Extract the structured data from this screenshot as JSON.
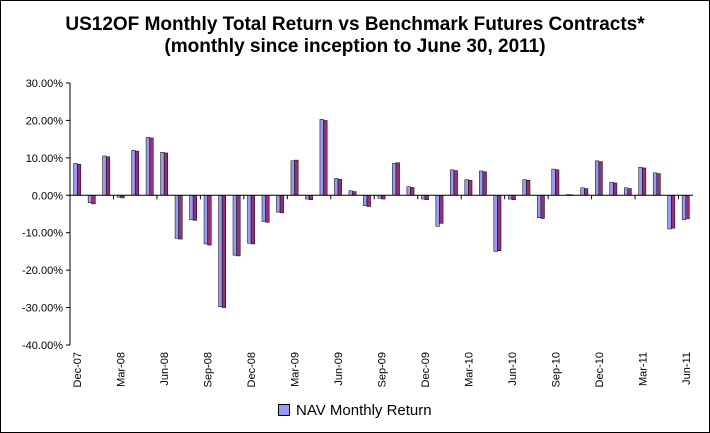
{
  "chart_data": {
    "type": "bar",
    "title": "US12OF Monthly Total Return vs Benchmark Futures Contracts*",
    "subtitle": "(monthly since inception to June 30, 2011)",
    "ylim": [
      -40,
      30
    ],
    "y_ticks": [
      "30.00%",
      "20.00%",
      "10.00%",
      "0.00%",
      "-10.00%",
      "-20.00%",
      "-30.00%",
      "-40.00%"
    ],
    "y_tick_values": [
      30,
      20,
      10,
      0,
      -10,
      -20,
      -30,
      -40
    ],
    "categories": [
      "Dec-07",
      "Jan-08",
      "Feb-08",
      "Mar-08",
      "Apr-08",
      "May-08",
      "Jun-08",
      "Jul-08",
      "Aug-08",
      "Sep-08",
      "Oct-08",
      "Nov-08",
      "Dec-08",
      "Jan-09",
      "Feb-09",
      "Mar-09",
      "Apr-09",
      "May-09",
      "Jun-09",
      "Jul-09",
      "Aug-09",
      "Sep-09",
      "Oct-09",
      "Nov-09",
      "Dec-09",
      "Jan-10",
      "Feb-10",
      "Mar-10",
      "Apr-10",
      "May-10",
      "Jun-10",
      "Jul-10",
      "Aug-10",
      "Sep-10",
      "Oct-10",
      "Nov-10",
      "Dec-10",
      "Jan-11",
      "Feb-11",
      "Mar-11",
      "Apr-11",
      "May-11",
      "Jun-11"
    ],
    "x_tick_labels": [
      "Dec-07",
      "Mar-08",
      "Jun-08",
      "Sep-08",
      "Dec-08",
      "Mar-09",
      "Jun-09",
      "Sep-09",
      "Dec-09",
      "Mar-10",
      "Jun-10",
      "Sep-10",
      "Dec-10",
      "Mar-11",
      "Jun-11"
    ],
    "series": [
      {
        "name": "NAV Monthly Return",
        "color": "#9999ff",
        "values": [
          8.5,
          -2.0,
          10.5,
          -0.5,
          12.0,
          15.5,
          11.5,
          -11.5,
          -6.5,
          -13.0,
          -29.8,
          -16.0,
          -12.8,
          -7.0,
          -4.5,
          9.2,
          -1.0,
          20.3,
          4.5,
          1.2,
          -2.8,
          -0.8,
          8.5,
          2.3,
          -1.0,
          -8.3,
          6.8,
          4.2,
          6.5,
          -15.0,
          -1.0,
          4.2,
          -6.0,
          7.0,
          0.2,
          2.0,
          9.2,
          3.5,
          2.0,
          7.5,
          6.0,
          -9.0,
          -6.5
        ]
      },
      {
        "name": "",
        "color": "#993366",
        "values": [
          8.3,
          -2.3,
          10.3,
          -0.7,
          11.8,
          15.3,
          11.3,
          -11.7,
          -6.7,
          -13.3,
          -30.0,
          -16.2,
          -13.0,
          -7.2,
          -4.7,
          9.4,
          -1.2,
          20.0,
          4.3,
          1.0,
          -3.0,
          -1.0,
          8.7,
          2.1,
          -1.2,
          -7.5,
          6.6,
          4.0,
          6.3,
          -14.8,
          -1.2,
          4.0,
          -6.2,
          6.8,
          0.1,
          1.8,
          9.0,
          3.3,
          1.8,
          7.3,
          5.8,
          -8.8,
          -6.3
        ]
      }
    ],
    "grid": false,
    "legend_position": "bottom"
  },
  "legend": {
    "label": "NAV Monthly Return"
  }
}
